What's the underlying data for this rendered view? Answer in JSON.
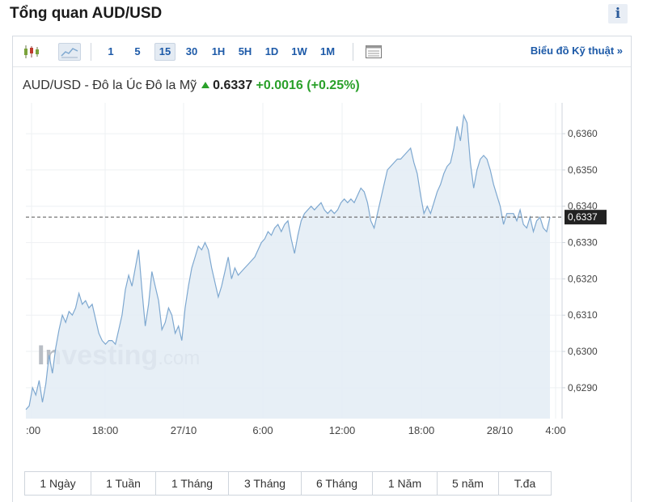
{
  "page": {
    "title": "Tổng quan AUD/USD",
    "info_label": "i"
  },
  "toolbar": {
    "intervals": [
      "1",
      "5",
      "15",
      "30",
      "1H",
      "5H",
      "1D",
      "1W",
      "1M"
    ],
    "active_interval": "15",
    "tech_chart_link": "Biểu đồ Kỹ thuật »",
    "icons": [
      "candlestick-icon",
      "area-chart-icon",
      "table-view-icon"
    ]
  },
  "quote": {
    "name": "AUD/USD - Đô la Úc Đô la Mỹ",
    "price": "0.6337",
    "change": "+0.0016",
    "change_pct": "(+0.25%)"
  },
  "watermark": {
    "brand": "Investing",
    "suffix": ".com"
  },
  "chart_data": {
    "type": "area",
    "y_ticks": [
      "0,6290",
      "0,6300",
      "0,6310",
      "0,6320",
      "0,6330",
      "0,6340",
      "0,6350",
      "0,6360"
    ],
    "y_tick_values": [
      0.629,
      0.63,
      0.631,
      0.632,
      0.633,
      0.634,
      0.635,
      0.636
    ],
    "x_ticks": [
      ":00",
      "18:00",
      "27/10",
      "6:00",
      "12:00",
      "18:00",
      "28/10",
      "4:00"
    ],
    "current_value": 0.6337,
    "current_label": "0,6337",
    "ylim": [
      0.62815,
      0.63676
    ],
    "grid": true,
    "colors": {
      "line": "#7ea8d0",
      "fill": "#e3ecf5",
      "label_bg": "#222222",
      "dashed": "#555555"
    },
    "values": [
      0.6284,
      0.6285,
      0.629,
      0.6288,
      0.6292,
      0.6286,
      0.6291,
      0.6299,
      0.6294,
      0.6301,
      0.6306,
      0.631,
      0.6308,
      0.6311,
      0.631,
      0.6312,
      0.6316,
      0.6313,
      0.6314,
      0.6312,
      0.6313,
      0.6309,
      0.6305,
      0.6303,
      0.6302,
      0.6303,
      0.6303,
      0.6302,
      0.6306,
      0.631,
      0.6317,
      0.6321,
      0.6318,
      0.6323,
      0.6328,
      0.6317,
      0.6307,
      0.6313,
      0.6322,
      0.6318,
      0.6314,
      0.6306,
      0.6308,
      0.6312,
      0.631,
      0.6305,
      0.6307,
      0.6303,
      0.6312,
      0.6318,
      0.6323,
      0.6326,
      0.6329,
      0.6328,
      0.633,
      0.6328,
      0.6323,
      0.6319,
      0.6315,
      0.6318,
      0.6322,
      0.6326,
      0.632,
      0.6323,
      0.6321,
      0.6322,
      0.6323,
      0.6324,
      0.6325,
      0.6326,
      0.6328,
      0.633,
      0.6331,
      0.6333,
      0.6332,
      0.6334,
      0.6335,
      0.6333,
      0.6335,
      0.6336,
      0.6331,
      0.6327,
      0.6332,
      0.6336,
      0.6338,
      0.6339,
      0.634,
      0.6339,
      0.634,
      0.6341,
      0.6339,
      0.6338,
      0.6339,
      0.6338,
      0.6339,
      0.6341,
      0.6342,
      0.6341,
      0.6342,
      0.6341,
      0.6343,
      0.6345,
      0.6344,
      0.6341,
      0.6336,
      0.6334,
      0.6338,
      0.6342,
      0.6346,
      0.635,
      0.6351,
      0.6352,
      0.6353,
      0.6353,
      0.6354,
      0.6355,
      0.6356,
      0.6352,
      0.6349,
      0.6343,
      0.6338,
      0.634,
      0.6338,
      0.6341,
      0.6344,
      0.6346,
      0.6349,
      0.6351,
      0.6352,
      0.6356,
      0.6362,
      0.6358,
      0.6365,
      0.6363,
      0.6352,
      0.6345,
      0.635,
      0.6353,
      0.6354,
      0.6353,
      0.635,
      0.6346,
      0.6343,
      0.634,
      0.6335,
      0.6338,
      0.6338,
      0.6338,
      0.6336,
      0.6339,
      0.6335,
      0.6334,
      0.6337,
      0.6333,
      0.6336,
      0.6337,
      0.6334,
      0.6333,
      0.6337
    ]
  },
  "ranges": [
    "1 Ngày",
    "1 Tuần",
    "1 Tháng",
    "3 Tháng",
    "6 Tháng",
    "1 Năm",
    "5 năm",
    "T.đa"
  ]
}
